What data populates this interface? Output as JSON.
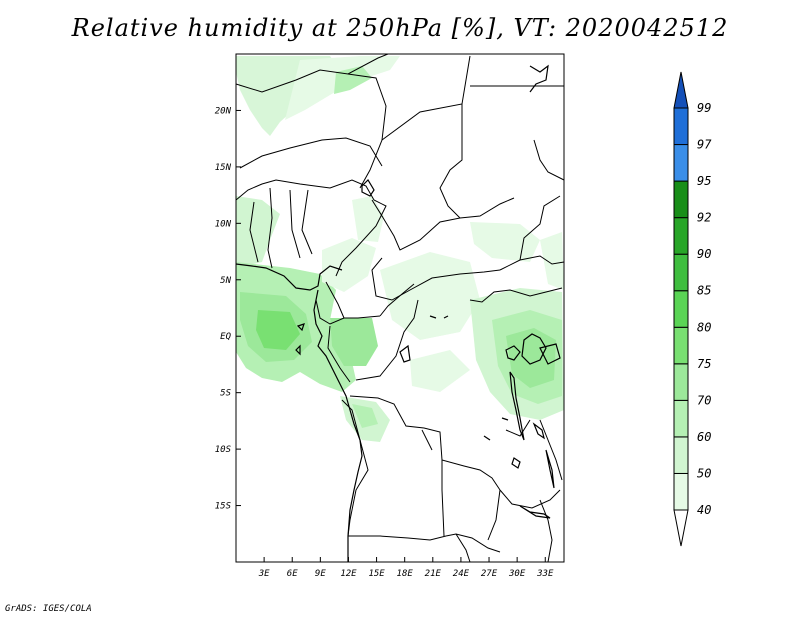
{
  "title": "Relative humidity at 250hPa [%], VT: 2020042512",
  "credit": "GrADS: IGES/COLA",
  "map": {
    "region": "Central Africa",
    "lon_range": [
      0,
      35
    ],
    "lat_range": [
      -20,
      25
    ],
    "x_ticks": [
      "3E",
      "6E",
      "9E",
      "12E",
      "15E",
      "18E",
      "21E",
      "24E",
      "27E",
      "30E",
      "33E"
    ],
    "y_ticks": [
      "20N",
      "15N",
      "10N",
      "5N",
      "EQ",
      "5S",
      "10S",
      "15S"
    ]
  },
  "colorbar": {
    "levels": [
      "40",
      "50",
      "60",
      "70",
      "75",
      "80",
      "85",
      "90",
      "92",
      "95",
      "97",
      "99"
    ],
    "colors": [
      "#ffffff",
      "#e6fae6",
      "#d1f5d1",
      "#b5f0b4",
      "#9ce89a",
      "#79e072",
      "#5ad455",
      "#3fbe3f",
      "#28a628",
      "#188e18",
      "#3a8ee8",
      "#1f6fd8",
      "#1450b8"
    ]
  }
}
